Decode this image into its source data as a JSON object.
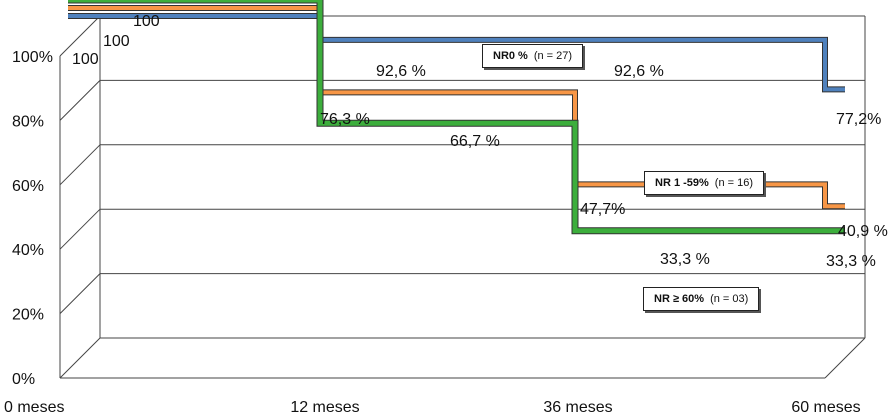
{
  "chart_data": {
    "type": "line",
    "step": true,
    "x_ticks": [
      "0 meses",
      "12 meses",
      "36 meses",
      "60 meses"
    ],
    "y_ticks": [
      "0%",
      "20%",
      "40%",
      "60%",
      "80%",
      "100%"
    ],
    "ylim": [
      0,
      100
    ],
    "grid": true,
    "series": [
      {
        "key": "nr0",
        "name": "NR0 %",
        "n_label": "(n = 27)",
        "color": "#4f81bd",
        "x": [
          0,
          12,
          36,
          60
        ],
        "values": [
          100,
          92.6,
          92.6,
          77.2
        ]
      },
      {
        "key": "nr1",
        "name": "NR 1 -59%",
        "n_label": "(n = 16)",
        "color": "#f79646",
        "x": [
          0,
          12,
          36,
          60
        ],
        "values": [
          100,
          76.3,
          47.7,
          40.9
        ]
      },
      {
        "key": "nr60",
        "name": "NR ≥ 60%",
        "n_label": "(n = 03)",
        "color": "#3cae3c",
        "x": [
          0,
          12,
          36,
          60
        ],
        "values": [
          100,
          66.7,
          33.3,
          33.3
        ]
      }
    ],
    "data_labels": [
      {
        "series": "nr60",
        "text": "100"
      },
      {
        "series": "nr1",
        "text": "100"
      },
      {
        "series": "nr0",
        "text": "100"
      },
      {
        "series": "nr0",
        "text": "92,6 %"
      },
      {
        "series": "nr0",
        "text": "92,6 %"
      },
      {
        "series": "nr0",
        "text": "77,2%"
      },
      {
        "series": "nr1",
        "text": "76,3  %"
      },
      {
        "series": "nr60",
        "text": "66,7  %"
      },
      {
        "series": "nr1",
        "text": "47,7%"
      },
      {
        "series": "nr1",
        "text": "40,9 %"
      },
      {
        "series": "nr60",
        "text": "33,3 %"
      },
      {
        "series": "nr60",
        "text": "33,3 %"
      }
    ]
  }
}
